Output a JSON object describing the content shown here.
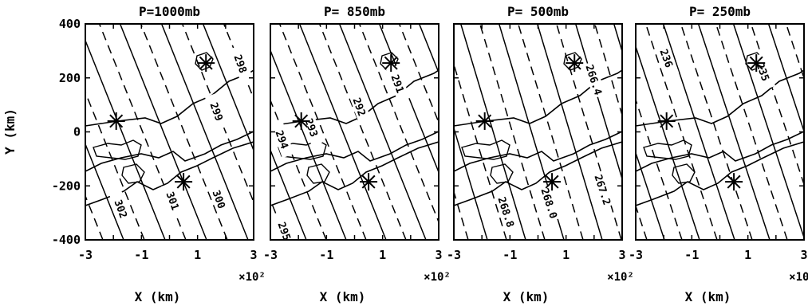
{
  "figure": {
    "ylabel": "Y (km)",
    "xlabel": "X (km)",
    "x_multiplier": "×10²"
  },
  "chart_data": {
    "type": "contour",
    "panel_count": 4,
    "x_range": [
      -3,
      3
    ],
    "y_range": [
      -400,
      400
    ],
    "x_ticks": [
      "-3",
      "-1",
      "1",
      "3"
    ],
    "y_ticks": [
      "400",
      "200",
      "0",
      "-200",
      "-400"
    ],
    "ylabel": "Y (km)",
    "xlabel": "X (km)",
    "x_multiplier": "×10²",
    "station_markers": [
      {
        "x": -1.9,
        "y": 40
      },
      {
        "x": 1.3,
        "y": 255
      },
      {
        "x": 0.5,
        "y": -185
      }
    ],
    "panels": [
      {
        "title": "P=1000mb",
        "contour_labels": [
          "298",
          "299",
          "300",
          "301",
          "302"
        ]
      },
      {
        "title": "P= 850mb",
        "contour_labels": [
          "291",
          "292",
          "293",
          "294",
          "295"
        ]
      },
      {
        "title": "P= 500mb",
        "contour_labels": [
          "266.4",
          "267.2",
          "268.0",
          "268.8"
        ]
      },
      {
        "title": "P= 250mb",
        "contour_labels": [
          "235",
          "236"
        ]
      }
    ]
  }
}
